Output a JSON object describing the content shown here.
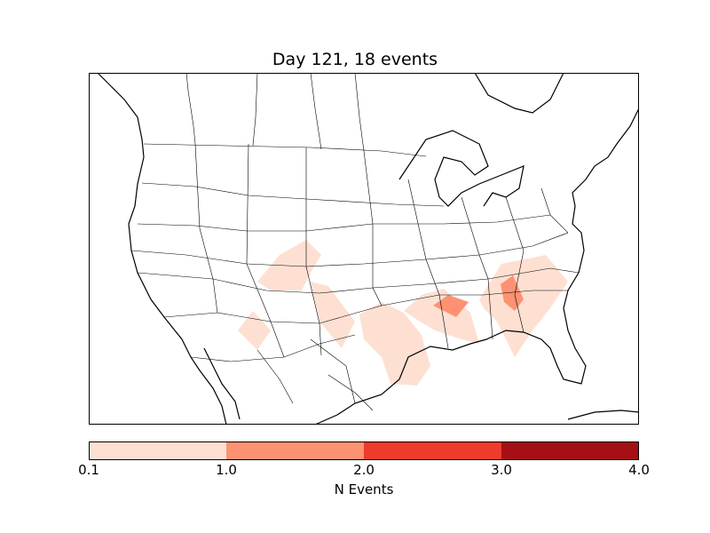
{
  "title": "Day 121, 18 events",
  "colorbar": {
    "label": "N Events",
    "ticks": [
      "0.1",
      "1.0",
      "2.0",
      "3.0",
      "4.0"
    ],
    "bins": [
      {
        "range": [
          0.1,
          1.0
        ],
        "color": "#fee0d2"
      },
      {
        "range": [
          1.0,
          2.0
        ],
        "color": "#fc9272"
      },
      {
        "range": [
          2.0,
          3.0
        ],
        "color": "#ef3b2c"
      },
      {
        "range": [
          3.0,
          4.0
        ],
        "color": "#a50f15"
      }
    ]
  },
  "map": {
    "region": "North America / CONUS",
    "projection": "lambert-conformal",
    "coastlines": true,
    "state_borders": true,
    "country_borders": true
  },
  "event_areas": [
    {
      "region": "Colorado / New Mexico",
      "level": "0.1-1.0"
    },
    {
      "region": "Arizona / New Mexico",
      "level": "0.1-1.0"
    },
    {
      "region": "Texas / Oklahoma",
      "level": "0.1-1.0"
    },
    {
      "region": "Arkansas / Louisiana / Mississippi",
      "level": "0.1-1.0"
    },
    {
      "region": "Alabama / Georgia / South Carolina",
      "level": "0.1-1.0"
    },
    {
      "region": "Mississippi",
      "level": "1.0-2.0"
    },
    {
      "region": "Georgia",
      "level": "1.0-2.0"
    }
  ]
}
